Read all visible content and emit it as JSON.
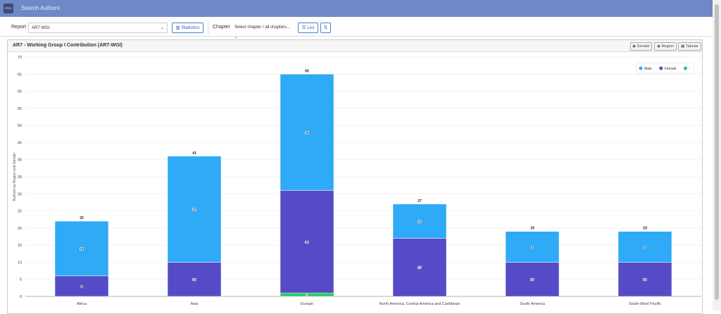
{
  "header": {
    "logo": "IPCC",
    "title": "Search Authors"
  },
  "toolbar": {
    "report_label": "Report",
    "report_value": "AR7 WGI",
    "statistics_button": "Statistics",
    "chapter_label": "Chapter",
    "chapter_value": "Select chapter / all chapters...",
    "list_button": "List"
  },
  "panel": {
    "title": "AR7 - Working Group I Contribution (AR7-WGI)",
    "buttons": [
      "Gender",
      "Region",
      "Tabular"
    ]
  },
  "chart_data": {
    "type": "stacked_bar",
    "y_label": "Authors by Region and Gender",
    "categories": [
      "Africa",
      "Asia",
      "Europe",
      "North America, Central America and Caribbean",
      "South America",
      "South-West Pacific"
    ],
    "series": [
      {
        "name": "Male",
        "color": "#2eaaf7",
        "values": [
          16,
          31,
          34,
          10,
          9,
          9
        ]
      },
      {
        "name": "Female",
        "color": "#564bc6",
        "values": [
          6,
          10,
          30,
          17,
          10,
          10
        ]
      },
      {
        "name": "-",
        "color": "#22cc66",
        "values": [
          0,
          0,
          1,
          0,
          0,
          0
        ]
      }
    ],
    "totals": [
      22,
      41,
      65,
      27,
      19,
      19
    ],
    "ylim": [
      0,
      70
    ],
    "yticks": [
      0,
      5,
      10,
      15,
      20,
      25,
      30,
      35,
      40,
      45,
      50,
      55,
      60,
      65,
      70
    ],
    "grid": true,
    "legend": "top-right"
  }
}
